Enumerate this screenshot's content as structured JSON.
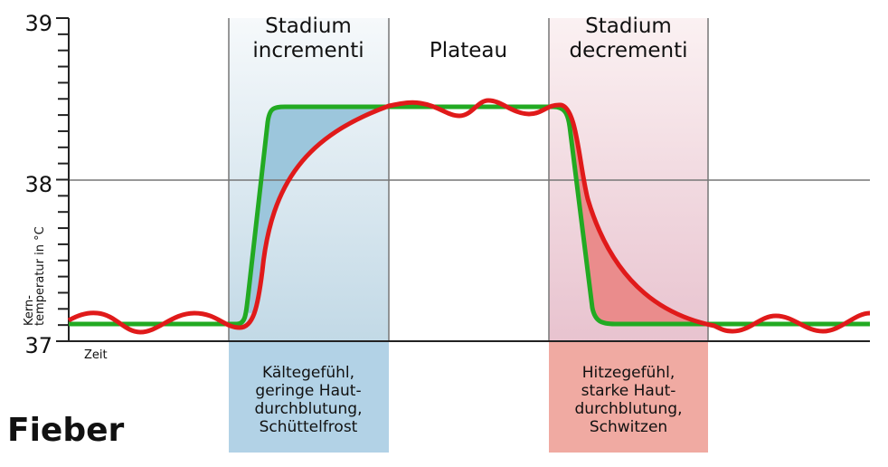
{
  "title": "Fieber",
  "y_axis": {
    "label_line1": "Kern-",
    "label_line2": "temperatur in °C",
    "ticks": [
      "37",
      "38",
      "39"
    ]
  },
  "x_axis": {
    "label": "Zeit"
  },
  "phases": [
    {
      "title_line1": "Stadium",
      "title_line2": "incrementi",
      "note_lines": [
        "Kältegefühl,",
        "geringe Haut-",
        "durchblutung,",
        "Schüttelfrost"
      ]
    },
    {
      "title_line1": "Plateau",
      "title_line2": ""
    },
    {
      "title_line1": "Stadium",
      "title_line2": "decrementi",
      "note_lines": [
        "Hitzegefühl,",
        "starke Haut-",
        "durchblutung,",
        "Schwitzen"
      ]
    }
  ],
  "colors": {
    "setpoint_curve": "#22aa22",
    "temperature_curve": "#e01a1a",
    "incrementi_fill": "#9cc6dc",
    "decrementi_fill": "#ea8c8c"
  }
}
